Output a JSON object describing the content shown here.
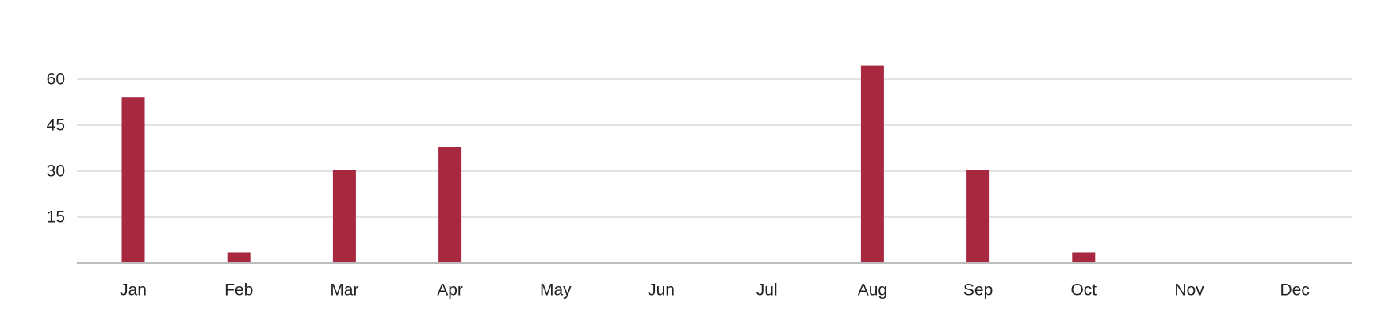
{
  "chart_data": {
    "type": "bar",
    "categories": [
      "Jan",
      "Feb",
      "Mar",
      "Apr",
      "May",
      "Jun",
      "Jul",
      "Aug",
      "Sep",
      "Oct",
      "Nov",
      "Dec"
    ],
    "series": [
      {
        "values": [
          54,
          3.5,
          30.5,
          38,
          0,
          0,
          0,
          64.5,
          30.5,
          3.5,
          0,
          0
        ]
      }
    ],
    "yticks": [
      15,
      30,
      45,
      60
    ],
    "ylim": [
      0,
      60
    ],
    "title": "",
    "xlabel": "",
    "ylabel": "",
    "grid": true,
    "legend": "none",
    "bar_color": "#a8283f",
    "grid_color": "#e3e3e3",
    "axis_color": "#bdbdbd"
  }
}
